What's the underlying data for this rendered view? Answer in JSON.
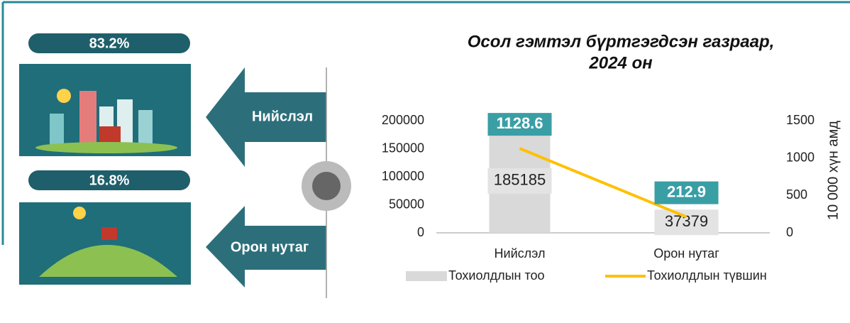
{
  "panels": [
    {
      "percent": "83.2%",
      "label": "Нийслэл"
    },
    {
      "percent": "16.8%",
      "label": "Орон нутаг"
    }
  ],
  "chart_data": {
    "type": "bar",
    "title": "Осол гэмтэл бүртгэгдсэн газраар,",
    "subtitle": "2024 он",
    "categories": [
      "Нийслэл",
      "Орон нутаг"
    ],
    "series": [
      {
        "name": "Тохиолдлын тоо",
        "color": "#d9d9d9",
        "values": [
          185185,
          37379
        ]
      },
      {
        "name": "Тохиолдлын түвшин",
        "color": "#ffc000",
        "values": [
          1128.6,
          212.9
        ],
        "axis": "y2",
        "type": "line"
      }
    ],
    "ylim": [
      0,
      200000
    ],
    "yticks": [
      0,
      50000,
      100000,
      150000,
      200000
    ],
    "y2lim": [
      0,
      1500
    ],
    "y2ticks": [
      0,
      500,
      1000,
      1500
    ],
    "y2label": "10 000 хүн амд",
    "legend": "bottom"
  }
}
